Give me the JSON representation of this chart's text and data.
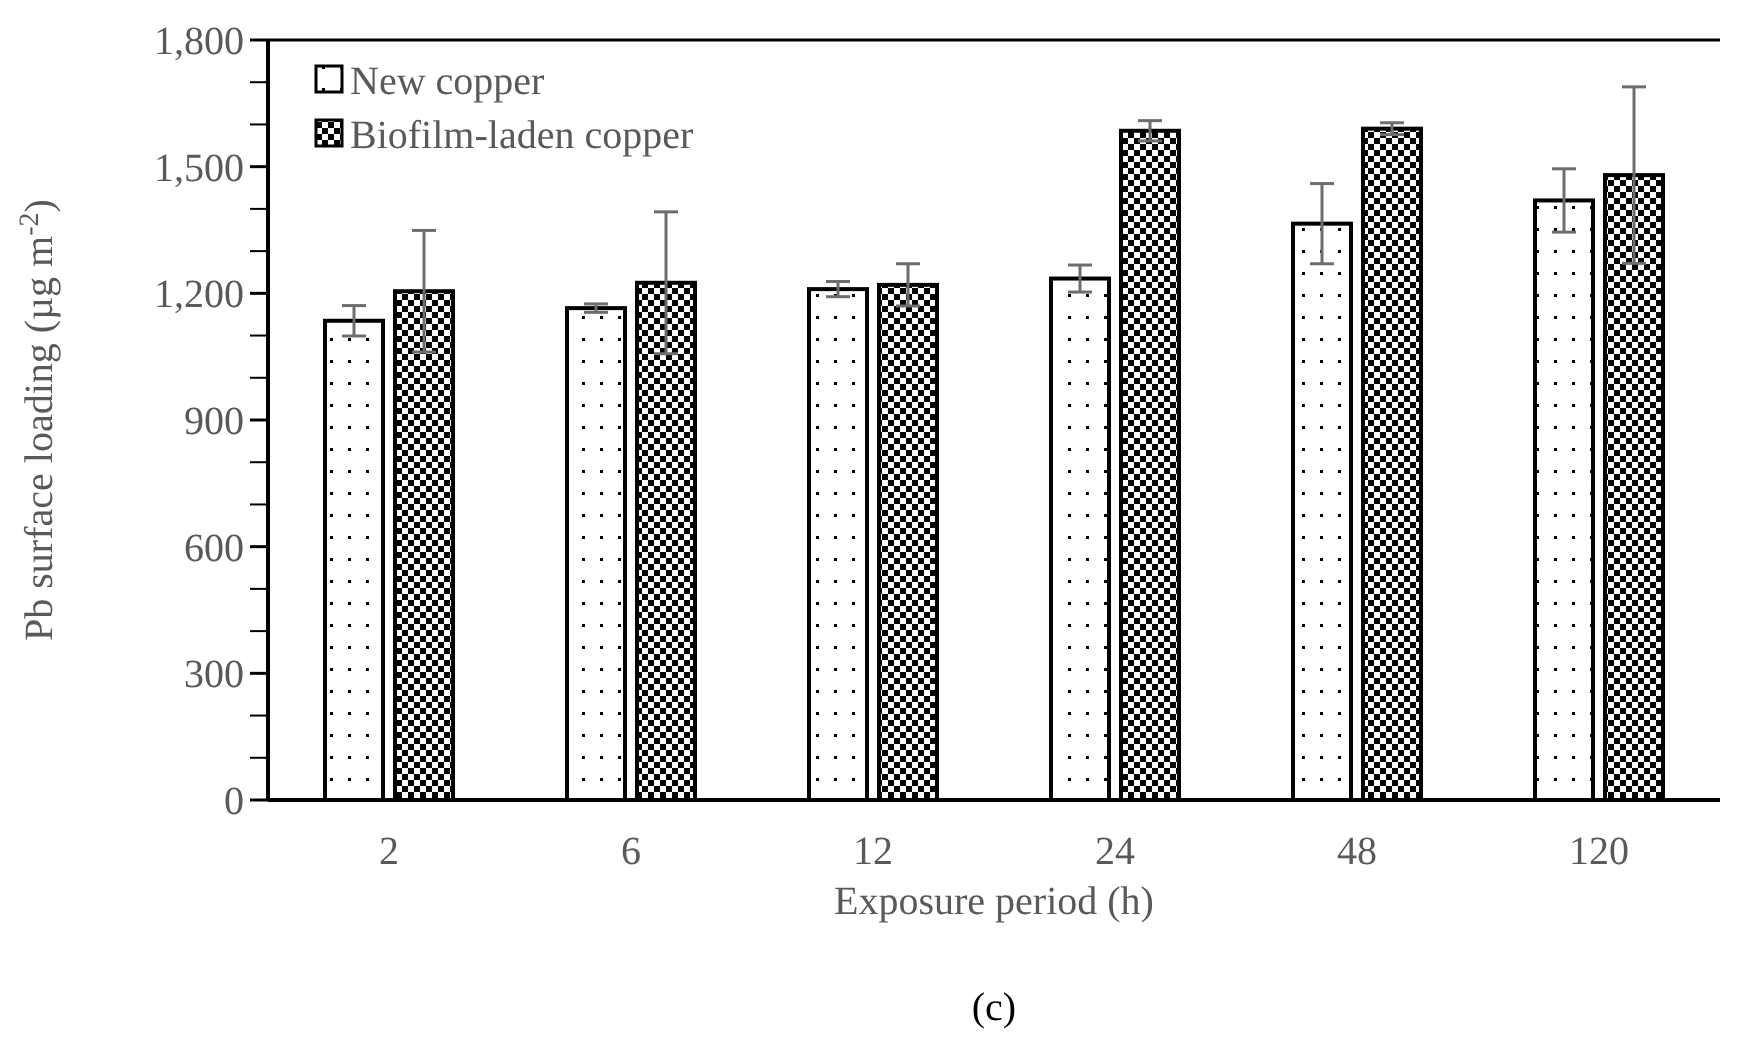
{
  "chart_data": {
    "type": "bar",
    "xlabel": "Exposure period (h)",
    "ylabel": "Pb surface loading (µg m$^{-2}$)",
    "categories": [
      "2",
      "6",
      "12",
      "24",
      "48",
      "120"
    ],
    "series": [
      {
        "name": "New copper",
        "color": "#000000",
        "values": [
          1135,
          1165,
          1210,
          1235,
          1365,
          1420
        ],
        "errors": [
          36,
          10,
          18,
          32,
          95,
          75
        ]
      },
      {
        "name": "Biofilm-laden copper",
        "color": "#000000",
        "values": [
          1205,
          1225,
          1220,
          1585,
          1590,
          1480
        ],
        "errors": [
          144,
          168,
          50,
          24,
          14,
          209
        ]
      }
    ],
    "ylim": [
      0,
      1800
    ],
    "yticks": [
      0,
      {
        "value": 100,
        "label": null
      },
      {
        "value": 200,
        "label": null
      },
      300,
      {
        "value": 400,
        "label": null
      },
      {
        "value": 500,
        "label": null
      },
      600,
      {
        "value": 700,
        "label": null
      },
      {
        "value": 800,
        "label": null
      },
      900,
      {
        "value": 1000,
        "label": null
      },
      {
        "value": 1100,
        "label": null
      },
      {
        "value": 1200,
        "label": "1,200"
      },
      {
        "value": 1300,
        "label": null
      },
      {
        "value": 1400,
        "label": null
      },
      {
        "value": 1500,
        "label": "1,500"
      },
      {
        "value": 1600,
        "label": null
      },
      {
        "value": 1700,
        "label": null
      },
      {
        "value": 1800,
        "label": "1,800"
      }
    ],
    "legend": "top left",
    "grid": false,
    "annotations": [
      "(c)"
    ]
  }
}
